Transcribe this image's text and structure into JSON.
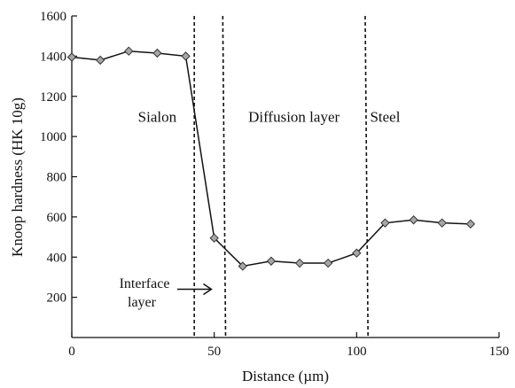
{
  "chart_data": {
    "type": "line",
    "title": "",
    "xlabel": "Distance (µm)",
    "ylabel": "Knoop hardness (HK 10g)",
    "xlim": [
      0,
      150
    ],
    "ylim": [
      0,
      1600
    ],
    "x_ticks": [
      0,
      50,
      100,
      150
    ],
    "y_ticks": [
      200,
      400,
      600,
      800,
      1000,
      1200,
      1400,
      1600
    ],
    "grid": false,
    "legend": "none",
    "marker": "diamond",
    "colors": {
      "line": "#111111",
      "marker_fill": "#a6a6a6",
      "marker_edge": "#333333"
    },
    "series": [
      {
        "x": [
          0,
          10,
          20,
          30,
          40,
          50,
          60,
          70,
          80,
          90,
          100,
          110,
          120,
          130,
          140
        ],
        "values": [
          1395,
          1380,
          1425,
          1415,
          1400,
          495,
          355,
          380,
          370,
          370,
          420,
          570,
          585,
          570,
          565
        ]
      }
    ],
    "boundaries": [
      {
        "top_x": 43,
        "bottom_x": 43
      },
      {
        "top_x": 53,
        "bottom_x": 54
      },
      {
        "top_x": 103,
        "bottom_x": 104
      }
    ],
    "region_labels": [
      {
        "text": "Sialon",
        "x": 30,
        "y": 1100
      },
      {
        "text": "Diffusion layer",
        "x": 78,
        "y": 1100
      },
      {
        "text": "Steel",
        "x": 110,
        "y": 1100
      }
    ],
    "annotation": {
      "lines": [
        "Interface",
        "layer"
      ],
      "arrow_from": [
        37,
        240
      ],
      "arrow_to": [
        49,
        240
      ]
    }
  }
}
